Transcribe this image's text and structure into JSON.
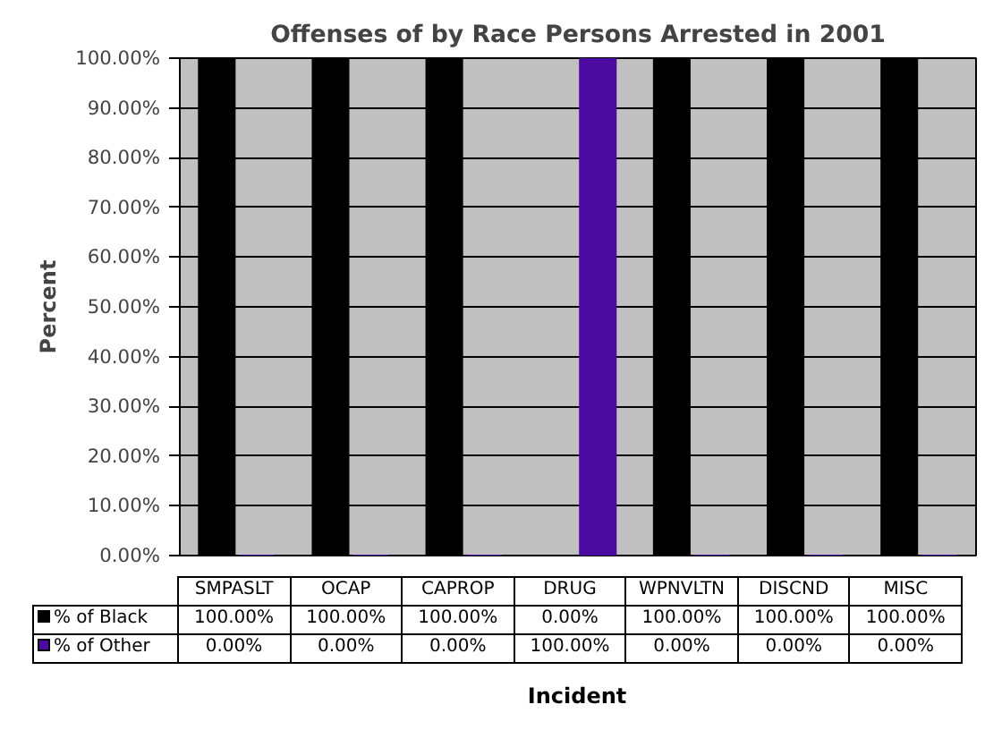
{
  "chart_data": {
    "type": "bar",
    "title": "Offenses of by Race Persons Arrested in 2001",
    "xlabel": "Incident",
    "ylabel": "Percent",
    "categories": [
      "SMPASLT",
      "OCAP",
      "CAPROP",
      "DRUG",
      "WPNVLTN",
      "DISCND",
      "MISC"
    ],
    "series": [
      {
        "name": "% of Black",
        "color": "#000000",
        "values": [
          100,
          100,
          100,
          0,
          100,
          100,
          100
        ],
        "value_labels": [
          "100.00%",
          "100.00%",
          "100.00%",
          "0.00%",
          "100.00%",
          "100.00%",
          "100.00%"
        ]
      },
      {
        "name": "% of Other",
        "color": "#4b0aa0",
        "values": [
          0,
          0,
          0,
          100,
          0,
          0,
          0
        ],
        "value_labels": [
          "0.00%",
          "0.00%",
          "0.00%",
          "100.00%",
          "0.00%",
          "0.00%",
          "0.00%"
        ]
      }
    ],
    "ylim": [
      0,
      100
    ],
    "yticks": [
      {
        "value": 0,
        "label": "0.00%"
      },
      {
        "value": 10,
        "label": "10.00%"
      },
      {
        "value": 20,
        "label": "20.00%"
      },
      {
        "value": 30,
        "label": "30.00%"
      },
      {
        "value": 40,
        "label": "40.00%"
      },
      {
        "value": 50,
        "label": "50.00%"
      },
      {
        "value": 60,
        "label": "60.00%"
      },
      {
        "value": 70,
        "label": "70.00%"
      },
      {
        "value": 80,
        "label": "80.00%"
      },
      {
        "value": 90,
        "label": "90.00%"
      },
      {
        "value": 100,
        "label": "100.00%"
      }
    ],
    "grid": "y",
    "legend": "bottom"
  }
}
